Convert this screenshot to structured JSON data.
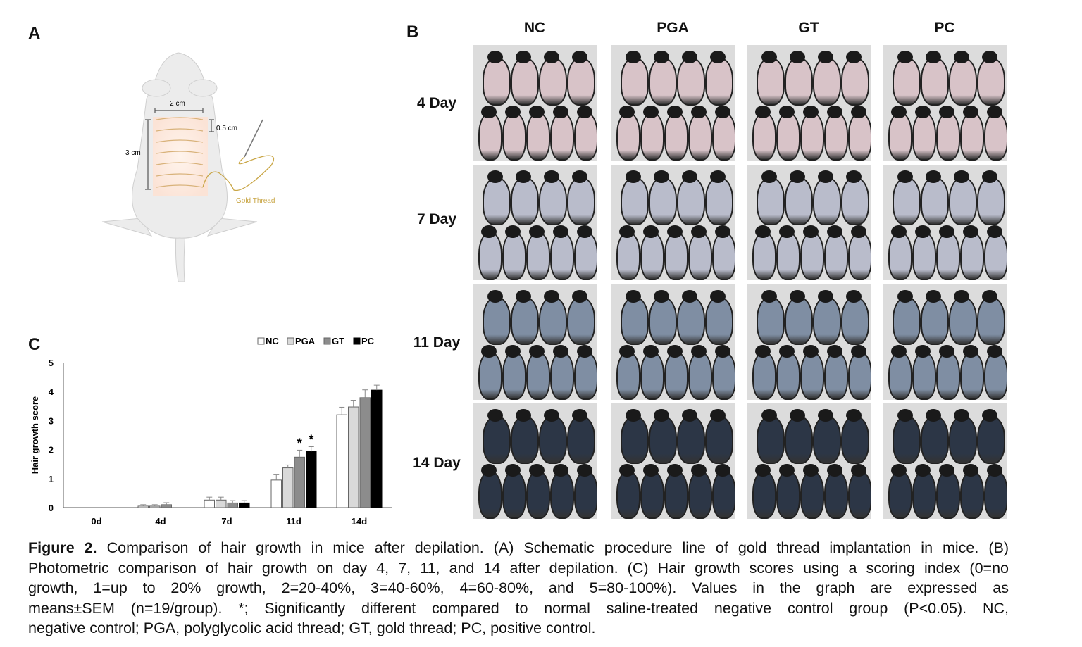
{
  "panels": {
    "a": "A",
    "b": "B",
    "c": "C"
  },
  "schematic": {
    "width_label": "2 cm",
    "spacing_label": "0.5 cm",
    "length_label": "3 cm",
    "thread_label": "Gold Thread",
    "thread_color": "#c9a646"
  },
  "photo_grid": {
    "columns": [
      "NC",
      "PGA",
      "GT",
      "PC"
    ],
    "rows": [
      "4 Day",
      "7 Day",
      "11 Day",
      "14 Day"
    ],
    "row_skin_colors": [
      "#d8c3c8",
      "#b9bccb",
      "#7f8ea3",
      "#2c3646"
    ]
  },
  "chart_data": {
    "type": "bar",
    "categories": [
      "0d",
      "4d",
      "7d",
      "11d",
      "14d"
    ],
    "ylabel": "Hair growth score",
    "xlabel": "",
    "ylim": [
      0,
      5
    ],
    "yticks": [
      0,
      1,
      2,
      3,
      4,
      5
    ],
    "grid": false,
    "legend_position": "top-right",
    "series": [
      {
        "name": "NC",
        "color": "#ffffff",
        "values": [
          0,
          0.05,
          0.26,
          0.95,
          3.2
        ],
        "errors": [
          0,
          0.05,
          0.1,
          0.2,
          0.26
        ]
      },
      {
        "name": "PGA",
        "color": "#d9d9d9",
        "values": [
          0,
          0.05,
          0.26,
          1.37,
          3.47
        ],
        "errors": [
          0,
          0.05,
          0.1,
          0.1,
          0.23
        ]
      },
      {
        "name": "GT",
        "color": "#8c8c8c",
        "values": [
          0,
          0.1,
          0.16,
          1.74,
          3.79
        ],
        "errors": [
          0,
          0.07,
          0.08,
          0.24,
          0.27
        ]
      },
      {
        "name": "PC",
        "color": "#000000",
        "values": [
          0,
          0,
          0.16,
          1.93,
          4.05
        ],
        "errors": [
          0,
          0,
          0.08,
          0.17,
          0.17
        ]
      }
    ],
    "annotations": [
      {
        "category": "11d",
        "series": "GT",
        "text": "*"
      },
      {
        "category": "11d",
        "series": "PC",
        "text": "*"
      }
    ]
  },
  "caption": {
    "lines": [
      [
        "Figure 2.",
        " Comparison of hair growth in mice after depilation. (A) Schematic procedure line of gold thread implantation in mice. (B)"
      ],
      [
        "",
        "Photometric comparison of hair growth on day 4, 7, 11, and 14 after depilation. (C) Hair growth scores using a scoring index (0=no"
      ],
      [
        "",
        "growth, 1=up to 20% growth, 2=20-40%, 3=40-60%, 4=60-80%, and 5=80-100%). Values in the graph are expressed as"
      ],
      [
        "",
        "means±SEM (n=19/group). *; Significantly different compared to normal saline-treated negative control group (P<0.05). NC,"
      ],
      [
        "",
        "negative control; PGA, polyglycolic acid thread; GT, gold thread; PC, positive control."
      ]
    ]
  }
}
